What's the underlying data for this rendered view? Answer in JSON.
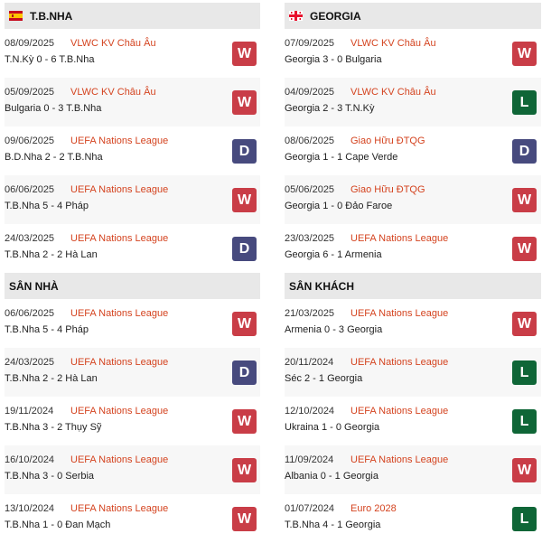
{
  "colors": {
    "W": "#c93d47",
    "L": "#0f6637",
    "D": "#474a7e",
    "competition": "#d4431f"
  },
  "left": {
    "title": "T.B.NHA",
    "flag_icon": "spain-flag-icon",
    "recent": [
      {
        "date": "08/09/2025",
        "competition": "VLWC KV Châu Âu",
        "score": "T.N.Kỳ 0 - 6 T.B.Nha",
        "result": "W"
      },
      {
        "date": "05/09/2025",
        "competition": "VLWC KV Châu Âu",
        "score": "Bulgaria 0 - 3 T.B.Nha",
        "result": "W"
      },
      {
        "date": "09/06/2025",
        "competition": "UEFA Nations League",
        "score": "B.D.Nha 2 - 2 T.B.Nha",
        "result": "D"
      },
      {
        "date": "06/06/2025",
        "competition": "UEFA Nations League",
        "score": "T.B.Nha 5 - 4 Pháp",
        "result": "W"
      },
      {
        "date": "24/03/2025",
        "competition": "UEFA Nations League",
        "score": "T.B.Nha 2 - 2 Hà Lan",
        "result": "D"
      }
    ],
    "section_title": "SÂN NHÀ",
    "section": [
      {
        "date": "06/06/2025",
        "competition": "UEFA Nations League",
        "score": "T.B.Nha 5 - 4 Pháp",
        "result": "W"
      },
      {
        "date": "24/03/2025",
        "competition": "UEFA Nations League",
        "score": "T.B.Nha 2 - 2 Hà Lan",
        "result": "D"
      },
      {
        "date": "19/11/2024",
        "competition": "UEFA Nations League",
        "score": "T.B.Nha 3 - 2 Thụy Sỹ",
        "result": "W"
      },
      {
        "date": "16/10/2024",
        "competition": "UEFA Nations League",
        "score": "T.B.Nha 3 - 0 Serbia",
        "result": "W"
      },
      {
        "date": "13/10/2024",
        "competition": "UEFA Nations League",
        "score": "T.B.Nha 1 - 0 Đan Mạch",
        "result": "W"
      }
    ]
  },
  "right": {
    "title": "GEORGIA",
    "flag_icon": "georgia-flag-icon",
    "recent": [
      {
        "date": "07/09/2025",
        "competition": "VLWC KV Châu Âu",
        "score": "Georgia 3 - 0 Bulgaria",
        "result": "W"
      },
      {
        "date": "04/09/2025",
        "competition": "VLWC KV Châu Âu",
        "score": "Georgia 2 - 3 T.N.Kỳ",
        "result": "L"
      },
      {
        "date": "08/06/2025",
        "competition": "Giao Hữu ĐTQG",
        "score": "Georgia 1 - 1 Cape Verde",
        "result": "D"
      },
      {
        "date": "05/06/2025",
        "competition": "Giao Hữu ĐTQG",
        "score": "Georgia 1 - 0 Đảo Faroe",
        "result": "W"
      },
      {
        "date": "23/03/2025",
        "competition": "UEFA Nations League",
        "score": "Georgia 6 - 1 Armenia",
        "result": "W"
      }
    ],
    "section_title": "SÂN KHÁCH",
    "section": [
      {
        "date": "21/03/2025",
        "competition": "UEFA Nations League",
        "score": "Armenia 0 - 3 Georgia",
        "result": "W"
      },
      {
        "date": "20/11/2024",
        "competition": "UEFA Nations League",
        "score": "Séc 2 - 1 Georgia",
        "result": "L"
      },
      {
        "date": "12/10/2024",
        "competition": "UEFA Nations League",
        "score": "Ukraina 1 - 0 Georgia",
        "result": "L"
      },
      {
        "date": "11/09/2024",
        "competition": "UEFA Nations League",
        "score": "Albania 0 - 1 Georgia",
        "result": "W"
      },
      {
        "date": "01/07/2024",
        "competition": "Euro 2028",
        "score": "T.B.Nha 4 - 1 Georgia",
        "result": "L"
      }
    ]
  }
}
